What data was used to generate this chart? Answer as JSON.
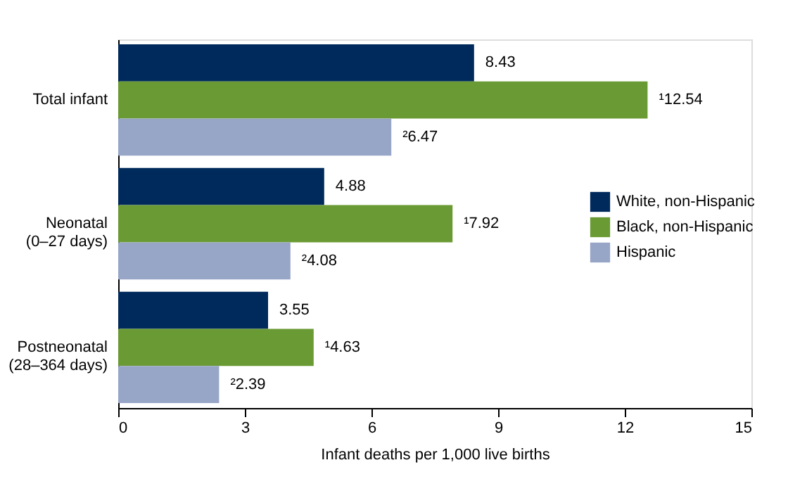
{
  "chart_data": {
    "type": "bar",
    "orientation": "horizontal",
    "categories": [
      "Total infant",
      "Neonatal\n(0–27 days)",
      "Postneonatal\n(28–364 days)"
    ],
    "series": [
      {
        "name": "White, non-Hispanic",
        "color": "#002a5c",
        "values": [
          8.43,
          4.88,
          3.55
        ],
        "value_labels": [
          "8.43",
          "4.88",
          "3.55"
        ]
      },
      {
        "name": "Black, non-Hispanic",
        "color": "#6a9a33",
        "values": [
          12.54,
          7.92,
          4.63
        ],
        "value_labels": [
          "¹12.54",
          "¹7.92",
          "¹4.63"
        ]
      },
      {
        "name": "Hispanic",
        "color": "#97a5c6",
        "values": [
          6.47,
          4.08,
          2.39
        ],
        "value_labels": [
          "²6.47",
          "²4.08",
          "²2.39"
        ]
      }
    ],
    "xlabel": "Infant deaths per 1,000 live births",
    "xlim": [
      0,
      15
    ],
    "xticks": [
      0,
      3,
      6,
      9,
      12,
      15
    ],
    "grid": false,
    "legend": "right"
  }
}
